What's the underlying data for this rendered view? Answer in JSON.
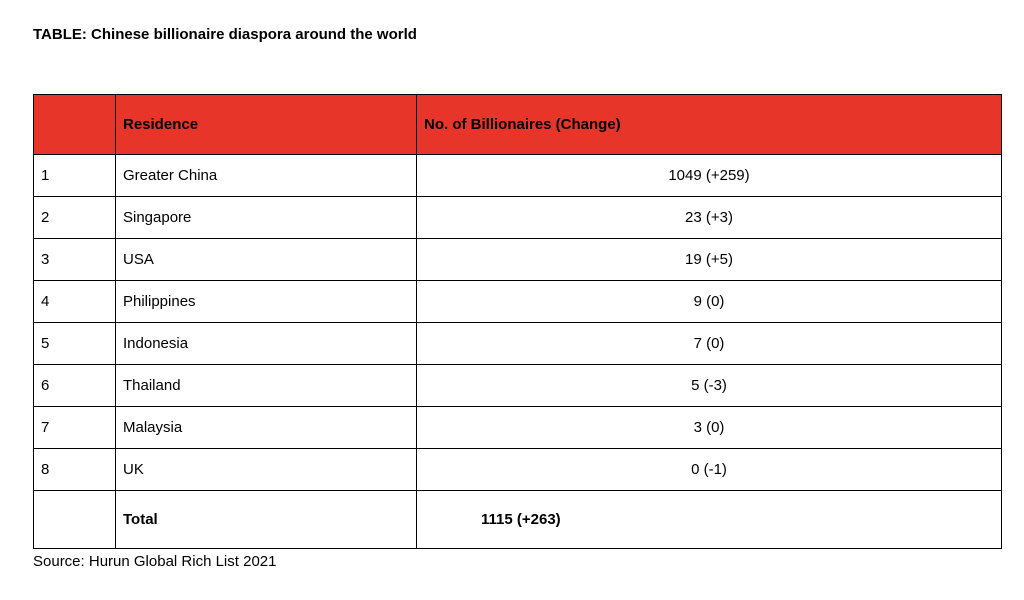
{
  "title": "TABLE: Chinese billionaire diaspora around the world",
  "header": {
    "rank": "",
    "residence": "Residence",
    "billionaires": "No. of Billionaires (Change)"
  },
  "header_color": "#e8352a",
  "rows": [
    {
      "rank": "1",
      "residence": "Greater China",
      "billionaires": "1049 (+259)"
    },
    {
      "rank": "2",
      "residence": "Singapore",
      "billionaires": "23 (+3)"
    },
    {
      "rank": "3",
      "residence": "USA",
      "billionaires": "19 (+5)"
    },
    {
      "rank": "4",
      "residence": "Philippines",
      "billionaires": "9 (0)"
    },
    {
      "rank": "5",
      "residence": "Indonesia",
      "billionaires": "7 (0)"
    },
    {
      "rank": "6",
      "residence": "Thailand",
      "billionaires": "5 (-3)"
    },
    {
      "rank": "7",
      "residence": "Malaysia",
      "billionaires": "3 (0)"
    },
    {
      "rank": "8",
      "residence": "UK",
      "billionaires": "0 (-1)"
    }
  ],
  "total": {
    "rank": "",
    "label": "Total",
    "billionaires": "1115 (+263)"
  },
  "source": "Source: Hurun Global Rich List 2021"
}
